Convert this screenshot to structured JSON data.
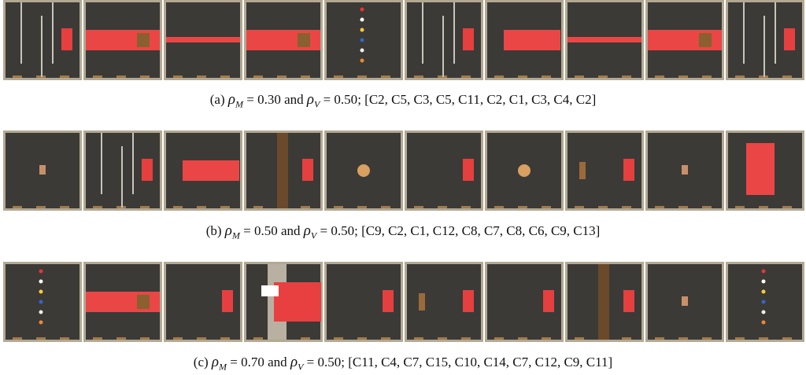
{
  "captions": [
    {
      "label": "(a)",
      "rho_m": {
        "symbol": "ρ",
        "sub": "M",
        "value": "= 0.30"
      },
      "joiner": "and",
      "rho_v": {
        "symbol": "ρ",
        "sub": "V",
        "value": "= 0.50"
      },
      "configs": "; [C2, C5, C3, C5, C11, C2, C1, C3, C4, C2]"
    },
    {
      "label": "(b)",
      "rho_m": {
        "symbol": "ρ",
        "sub": "M",
        "value": "= 0.50"
      },
      "joiner": "and",
      "rho_v": {
        "symbol": "ρ",
        "sub": "V",
        "value": "= 0.50"
      },
      "configs": "; [C9, C2, C1, C12, C8, C7, C8, C6, C9, C13]"
    },
    {
      "label": "(c)",
      "rho_m": {
        "symbol": "ρ",
        "sub": "M",
        "value": "= 0.70"
      },
      "joiner": "and",
      "rho_v": {
        "symbol": "ρ",
        "sub": "V",
        "value": "= 0.50"
      },
      "configs": "; [C11, C4, C7, C15, C10, C14, C7, C12, C9, C11]"
    }
  ]
}
